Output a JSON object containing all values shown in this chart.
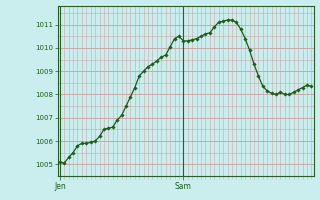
{
  "background_color": "#caeeed",
  "plot_bg_color": "#caeeed",
  "line_color": "#1a5c1a",
  "marker_color": "#1a5c1a",
  "grid_color": "#c8a8a8",
  "yticks": [
    1005,
    1006,
    1007,
    1008,
    1009,
    1010,
    1011
  ],
  "ylim": [
    1004.5,
    1011.8
  ],
  "xlim_min": -0.5,
  "xlim_max": 57.5,
  "jen_x": 0,
  "sam_x": 28,
  "y_values": [
    1005.1,
    1005.05,
    1005.3,
    1005.5,
    1005.8,
    1005.9,
    1005.9,
    1005.95,
    1006.0,
    1006.2,
    1006.5,
    1006.55,
    1006.6,
    1006.9,
    1007.1,
    1007.5,
    1007.9,
    1008.3,
    1008.8,
    1009.0,
    1009.2,
    1009.3,
    1009.45,
    1009.6,
    1009.7,
    1010.05,
    1010.4,
    1010.5,
    1010.3,
    1010.3,
    1010.35,
    1010.4,
    1010.5,
    1010.6,
    1010.65,
    1010.9,
    1011.1,
    1011.15,
    1011.2,
    1011.2,
    1011.1,
    1010.8,
    1010.4,
    1009.9,
    1009.3,
    1008.8,
    1008.35,
    1008.15,
    1008.05,
    1008.0,
    1008.1,
    1008.0,
    1008.0,
    1008.1,
    1008.2,
    1008.3,
    1008.4,
    1008.35
  ]
}
